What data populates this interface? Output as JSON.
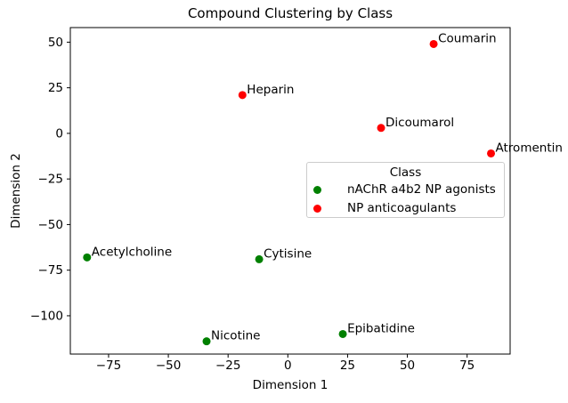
{
  "chart_data": {
    "type": "scatter",
    "title": "Compound Clustering by Class",
    "xlabel": "Dimension 1",
    "ylabel": "Dimension 2",
    "xlim": [
      -91,
      93
    ],
    "ylim": [
      -121,
      58
    ],
    "xticks": [
      -75,
      -50,
      -25,
      0,
      25,
      50,
      75
    ],
    "yticks": [
      50,
      25,
      0,
      -25,
      -50,
      -75,
      -100
    ],
    "grid": false,
    "legend": {
      "title": "Class",
      "position": "center-right"
    },
    "series": [
      {
        "name": "nAChR a4b2 NP agonists",
        "color": "#008000",
        "points": [
          {
            "label": "Acetylcholine",
            "x": -84,
            "y": -68
          },
          {
            "label": "Cytisine",
            "x": -12,
            "y": -69
          },
          {
            "label": "Nicotine",
            "x": -34,
            "y": -114
          },
          {
            "label": "Epibatidine",
            "x": 23,
            "y": -110
          }
        ]
      },
      {
        "name": "NP anticoagulants",
        "color": "#ff0000",
        "points": [
          {
            "label": "Coumarin",
            "x": 61,
            "y": 49
          },
          {
            "label": "Heparin",
            "x": -19,
            "y": 21
          },
          {
            "label": "Dicoumarol",
            "x": 39,
            "y": 3
          },
          {
            "label": "Atromentin",
            "x": 85,
            "y": -11
          }
        ]
      }
    ],
    "colors": {
      "text": "#000000",
      "spine": "#000000",
      "legend_border": "#cccccc"
    }
  }
}
